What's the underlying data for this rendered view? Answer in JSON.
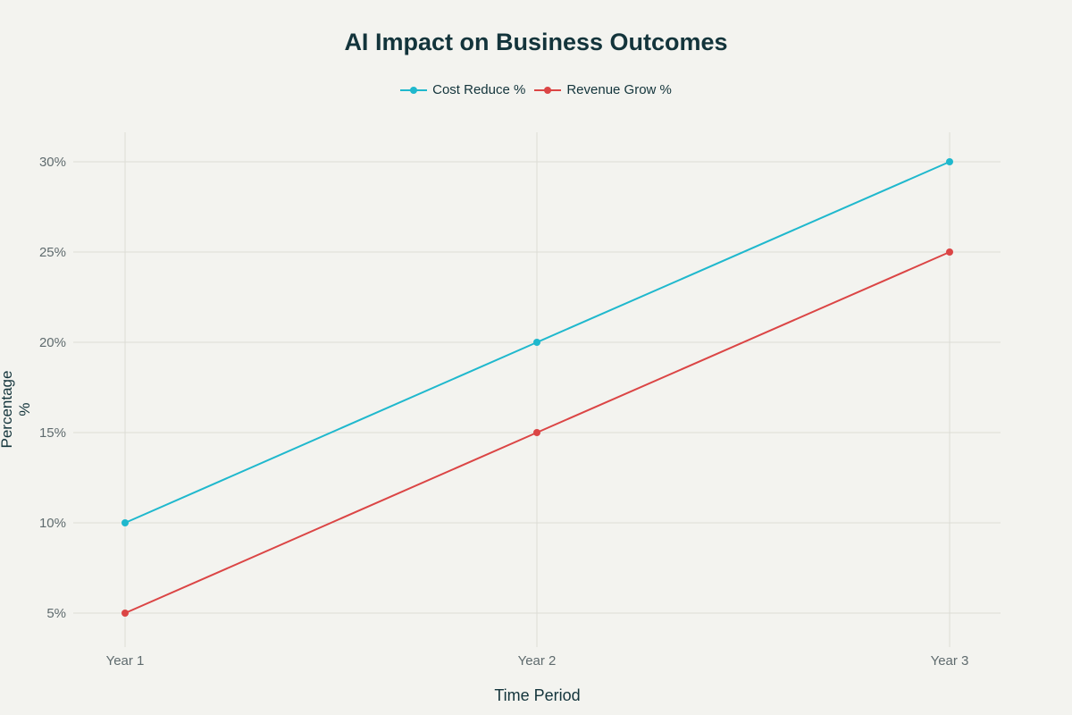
{
  "chart_data": {
    "type": "line",
    "title": "AI Impact on Business Outcomes",
    "xlabel": "Time Period",
    "ylabel": "Percentage %",
    "categories": [
      "Year 1",
      "Year 2",
      "Year 3"
    ],
    "series": [
      {
        "name": "Cost Reduce %",
        "values": [
          10,
          20,
          30
        ],
        "color": "#1fb8cd"
      },
      {
        "name": "Revenue Grow %",
        "values": [
          5,
          15,
          25
        ],
        "color": "#db4545"
      }
    ],
    "yticks": [
      "5%",
      "10%",
      "15%",
      "20%",
      "25%",
      "30%"
    ],
    "ylim": [
      3.3,
      31.6
    ],
    "grid": true,
    "legend_position": "top-center"
  }
}
